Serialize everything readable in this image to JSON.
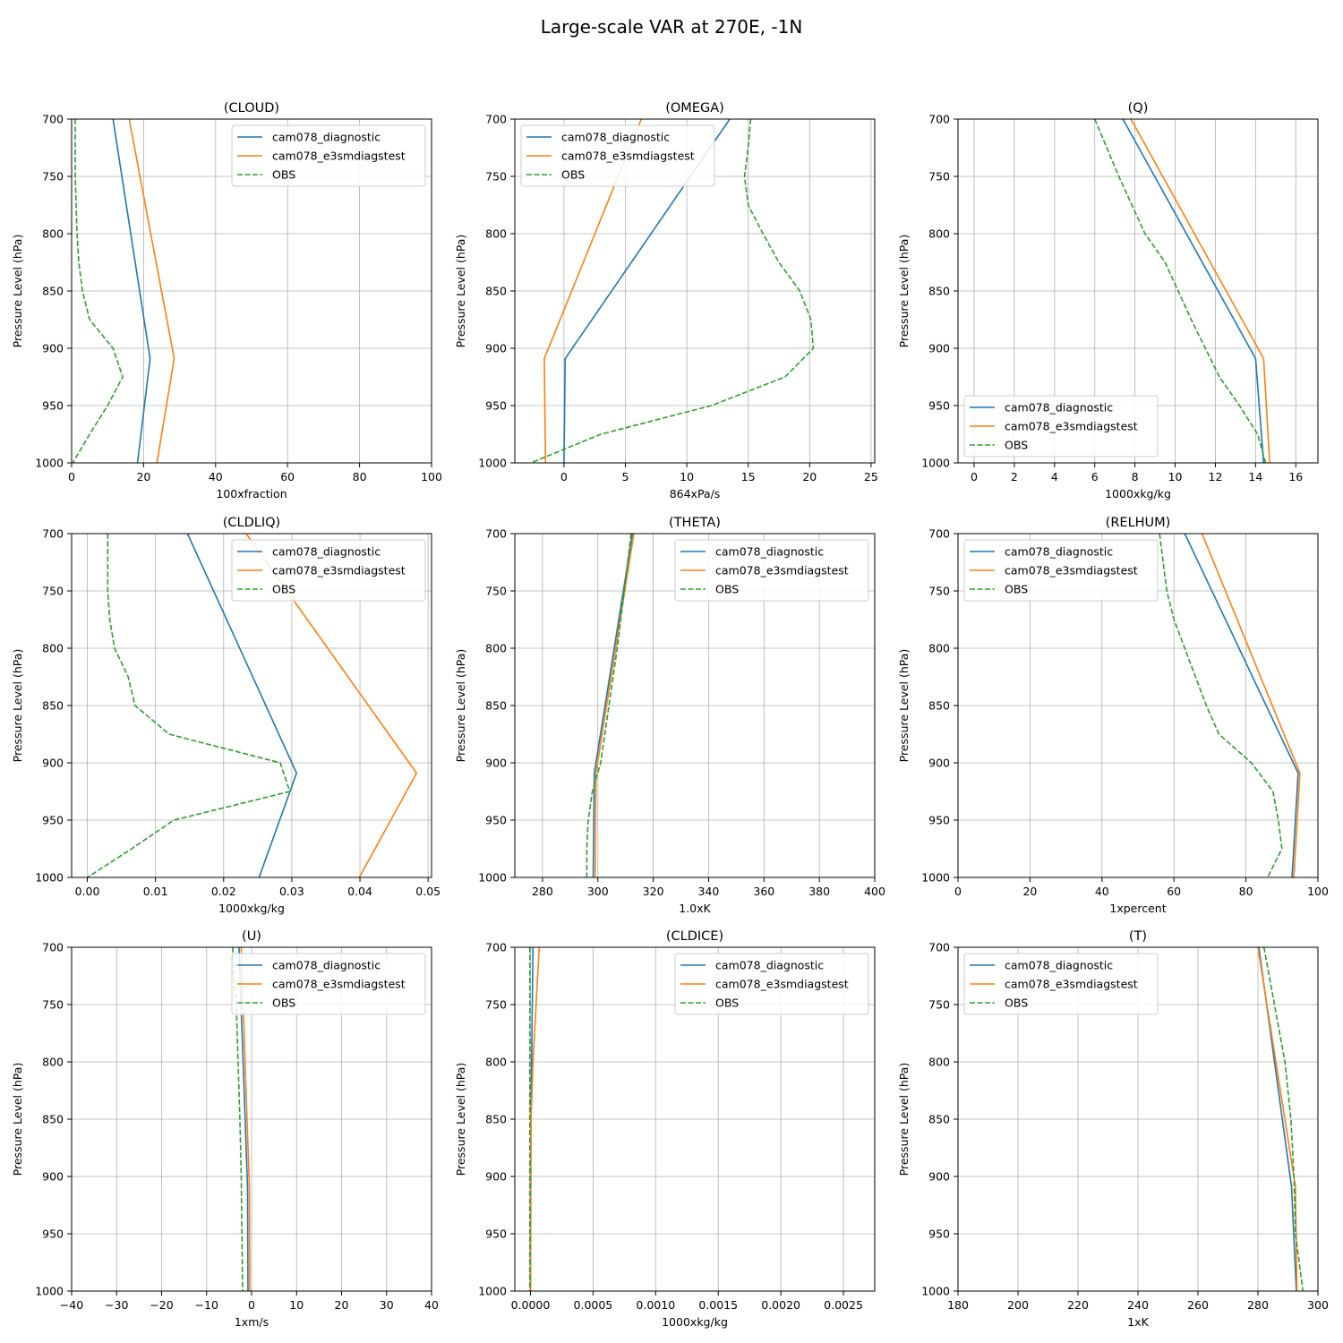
{
  "figure": {
    "title": "Large-scale VAR at 270E, -1N"
  },
  "colors": {
    "diag": "#1f77b4",
    "e3sm": "#ff7f0e",
    "obs": "#2ca02c"
  },
  "chart_data": [
    {
      "type": "line",
      "title": "(CLOUD)",
      "xlabel": "100xfraction",
      "ylabel": "Pressure Level (hPa)",
      "xlim": [
        0,
        100
      ],
      "ylim": [
        1000,
        700
      ],
      "xticks": [
        0,
        20,
        40,
        60,
        80,
        100
      ],
      "xtick_labels": [
        "0",
        "20",
        "40",
        "60",
        "80",
        "100"
      ],
      "yticks": [
        700,
        750,
        800,
        850,
        900,
        950,
        1000
      ],
      "ytick_labels": [
        "700",
        "750",
        "800",
        "850",
        "900",
        "950",
        "1000"
      ],
      "grid": true,
      "legend": "upper right",
      "series": [
        {
          "name": "cam078_diagnostic",
          "style": "solid",
          "x": [
            11.5,
            21.8,
            18.3
          ],
          "y": [
            700,
            909,
            1000
          ]
        },
        {
          "name": "cam078_e3smdiagstest",
          "style": "solid",
          "x": [
            16,
            28.5,
            23.7
          ],
          "y": [
            700,
            909,
            1000
          ]
        },
        {
          "name": "OBS",
          "style": "dashed",
          "x": [
            1,
            1,
            1.5,
            2,
            3,
            5,
            11.5,
            14.2,
            10,
            5,
            0.3
          ],
          "y": [
            700,
            750,
            800,
            825,
            850,
            875,
            900,
            925,
            950,
            975,
            1000
          ]
        }
      ]
    },
    {
      "type": "line",
      "title": "(OMEGA)",
      "xlabel": "864xPa/s",
      "ylabel": "Pressure Level (hPa)",
      "xlim": [
        -4,
        25.3
      ],
      "ylim": [
        1000,
        700
      ],
      "xticks": [
        0,
        5,
        10,
        15,
        20,
        25
      ],
      "xtick_labels": [
        "0",
        "5",
        "10",
        "15",
        "20",
        "25"
      ],
      "yticks": [
        700,
        750,
        800,
        850,
        900,
        950,
        1000
      ],
      "ytick_labels": [
        "700",
        "750",
        "800",
        "850",
        "900",
        "950",
        "1000"
      ],
      "grid": true,
      "legend": "upper left",
      "series": [
        {
          "name": "cam078_diagnostic",
          "style": "solid",
          "x": [
            13.5,
            0.1,
            0
          ],
          "y": [
            700,
            909,
            1000
          ]
        },
        {
          "name": "cam078_e3smdiagstest",
          "style": "solid",
          "x": [
            6.3,
            -1.6,
            -1.5
          ],
          "y": [
            700,
            909,
            1000
          ]
        },
        {
          "name": "OBS",
          "style": "dashed",
          "x": [
            15.2,
            15,
            14.7,
            15,
            16.2,
            17.5,
            19.2,
            20.1,
            20.3,
            18,
            12,
            3,
            -2.7
          ],
          "y": [
            700,
            725,
            750,
            775,
            800,
            825,
            850,
            875,
            900,
            925,
            950,
            975,
            1000
          ]
        }
      ]
    },
    {
      "type": "line",
      "title": "(Q)",
      "xlabel": "1000xkg/kg",
      "ylabel": "Pressure Level (hPa)",
      "xlim": [
        -0.8,
        17.1
      ],
      "ylim": [
        1000,
        700
      ],
      "xticks": [
        0,
        2,
        4,
        6,
        8,
        10,
        12,
        14,
        16
      ],
      "xtick_labels": [
        "0",
        "2",
        "4",
        "6",
        "8",
        "10",
        "12",
        "14",
        "16"
      ],
      "yticks": [
        700,
        750,
        800,
        850,
        900,
        950,
        1000
      ],
      "ytick_labels": [
        "700",
        "750",
        "800",
        "850",
        "900",
        "950",
        "1000"
      ],
      "grid": true,
      "legend": "lower left",
      "series": [
        {
          "name": "cam078_diagnostic",
          "style": "solid",
          "x": [
            7.4,
            14,
            14.4
          ],
          "y": [
            700,
            909,
            1000
          ]
        },
        {
          "name": "cam078_e3smdiagstest",
          "style": "solid",
          "x": [
            7.8,
            14.4,
            14.7
          ],
          "y": [
            700,
            909,
            1000
          ]
        },
        {
          "name": "OBS",
          "style": "dashed",
          "x": [
            6,
            7.2,
            8.5,
            9.5,
            10.8,
            12.2,
            13.2,
            14.1,
            14.5
          ],
          "y": [
            700,
            750,
            800,
            825,
            875,
            925,
            950,
            975,
            1000
          ]
        }
      ]
    },
    {
      "type": "line",
      "title": "(CLDLIQ)",
      "xlabel": "1000xkg/kg",
      "ylabel": "Pressure Level (hPa)",
      "xlim": [
        -0.0023,
        0.0505
      ],
      "ylim": [
        1000,
        700
      ],
      "xticks": [
        0,
        0.01,
        0.02,
        0.03,
        0.04,
        0.05
      ],
      "xtick_labels": [
        "0.00",
        "0.01",
        "0.02",
        "0.03",
        "0.04",
        "0.05"
      ],
      "yticks": [
        700,
        750,
        800,
        850,
        900,
        950,
        1000
      ],
      "ytick_labels": [
        "700",
        "750",
        "800",
        "850",
        "900",
        "950",
        "1000"
      ],
      "grid": true,
      "legend": "upper right",
      "series": [
        {
          "name": "cam078_diagnostic",
          "style": "solid",
          "x": [
            0.0147,
            0.0307,
            0.0252
          ],
          "y": [
            700,
            909,
            1000
          ]
        },
        {
          "name": "cam078_e3smdiagstest",
          "style": "solid",
          "x": [
            0.0233,
            0.0483,
            0.0399
          ],
          "y": [
            700,
            909,
            1000
          ]
        },
        {
          "name": "OBS",
          "style": "dashed",
          "x": [
            0.003,
            0.003,
            0.0033,
            0.004,
            0.006,
            0.007,
            0.012,
            0.0283,
            0.0297,
            0.0127,
            0.0065,
            0
          ],
          "y": [
            700,
            750,
            775,
            800,
            825,
            850,
            875,
            900,
            925,
            950,
            975,
            1000
          ]
        }
      ]
    },
    {
      "type": "line",
      "title": "(THETA)",
      "xlabel": "1.0xK",
      "ylabel": "Pressure Level (hPa)",
      "xlim": [
        270,
        400
      ],
      "ylim": [
        1000,
        700
      ],
      "xticks": [
        280,
        300,
        320,
        340,
        360,
        380,
        400
      ],
      "xtick_labels": [
        "280",
        "300",
        "320",
        "340",
        "360",
        "380",
        "400"
      ],
      "yticks": [
        700,
        750,
        800,
        850,
        900,
        950,
        1000
      ],
      "ytick_labels": [
        "700",
        "750",
        "800",
        "850",
        "900",
        "950",
        "1000"
      ],
      "grid": true,
      "legend": "upper right",
      "series": [
        {
          "name": "cam078_diagnostic",
          "style": "solid",
          "x": [
            312.5,
            298.7,
            298.3
          ],
          "y": [
            700,
            909,
            1000
          ]
        },
        {
          "name": "cam078_e3smdiagstest",
          "style": "solid",
          "x": [
            313,
            299.3,
            299
          ],
          "y": [
            700,
            909,
            1000
          ]
        },
        {
          "name": "OBS",
          "style": "dashed",
          "x": [
            312,
            309.5,
            307,
            304,
            301,
            298,
            296.5,
            296,
            296
          ],
          "y": [
            700,
            750,
            800,
            850,
            900,
            925,
            950,
            975,
            1000
          ]
        }
      ]
    },
    {
      "type": "line",
      "title": "(RELHUM)",
      "xlabel": "1xpercent",
      "ylabel": "Pressure Level (hPa)",
      "xlim": [
        0,
        100
      ],
      "ylim": [
        1000,
        700
      ],
      "xticks": [
        0,
        20,
        40,
        60,
        80,
        100
      ],
      "xtick_labels": [
        "0",
        "20",
        "40",
        "60",
        "80",
        "100"
      ],
      "yticks": [
        700,
        750,
        800,
        850,
        900,
        950,
        1000
      ],
      "ytick_labels": [
        "700",
        "750",
        "800",
        "850",
        "900",
        "950",
        "1000"
      ],
      "grid": true,
      "legend": "upper left",
      "series": [
        {
          "name": "cam078_diagnostic",
          "style": "solid",
          "x": [
            63,
            94.5,
            92.8
          ],
          "y": [
            700,
            909,
            1000
          ]
        },
        {
          "name": "cam078_e3smdiagstest",
          "style": "solid",
          "x": [
            67.8,
            95,
            93.3
          ],
          "y": [
            700,
            909,
            1000
          ]
        },
        {
          "name": "OBS",
          "style": "dashed",
          "x": [
            56,
            58,
            60,
            63,
            66,
            69,
            72.5,
            81.5,
            87.5,
            89,
            90,
            86
          ],
          "y": [
            700,
            750,
            775,
            800,
            825,
            850,
            875,
            900,
            925,
            950,
            975,
            1000
          ]
        }
      ]
    },
    {
      "type": "line",
      "title": "(U)",
      "xlabel": "1xm/s",
      "ylabel": "Pressure Level (hPa)",
      "xlim": [
        -40,
        40
      ],
      "ylim": [
        1000,
        700
      ],
      "xticks": [
        -40,
        -30,
        -20,
        -10,
        0,
        10,
        20,
        30,
        40
      ],
      "xtick_labels": [
        "−40",
        "−30",
        "−20",
        "−10",
        "0",
        "10",
        "20",
        "30",
        "40"
      ],
      "yticks": [
        700,
        750,
        800,
        850,
        900,
        950,
        1000
      ],
      "ytick_labels": [
        "700",
        "750",
        "800",
        "850",
        "900",
        "950",
        "1000"
      ],
      "grid": true,
      "legend": "upper right",
      "series": [
        {
          "name": "cam078_diagnostic",
          "style": "solid",
          "x": [
            -2.8,
            -0.9,
            -0.8
          ],
          "y": [
            700,
            909,
            1000
          ]
        },
        {
          "name": "cam078_e3smdiagstest",
          "style": "solid",
          "x": [
            -2.3,
            -0.5,
            -0.4
          ],
          "y": [
            700,
            909,
            1000
          ]
        },
        {
          "name": "OBS",
          "style": "dashed",
          "x": [
            -4.2,
            -4,
            -3.4,
            -3,
            -2.6,
            -2.3,
            -2
          ],
          "y": [
            700,
            725,
            750,
            800,
            850,
            900,
            1000
          ]
        }
      ]
    },
    {
      "type": "line",
      "title": "(CLDICE)",
      "xlabel": "1000xkg/kg",
      "ylabel": "Pressure Level (hPa)",
      "xlim": [
        -0.000125,
        0.00275
      ],
      "ylim": [
        1000,
        700
      ],
      "xticks": [
        0,
        0.0005,
        0.001,
        0.0015,
        0.002,
        0.0025
      ],
      "xtick_labels": [
        "0.0000",
        "0.0005",
        "0.0010",
        "0.0015",
        "0.0020",
        "0.0025"
      ],
      "yticks": [
        700,
        750,
        800,
        850,
        900,
        950,
        1000
      ],
      "ytick_labels": [
        "700",
        "750",
        "800",
        "850",
        "900",
        "950",
        "1000"
      ],
      "grid": true,
      "legend": "upper right",
      "series": [
        {
          "name": "cam078_diagnostic",
          "style": "solid",
          "x": [
            2e-05,
            4e-06,
            0
          ],
          "y": [
            700,
            850,
            1000
          ]
        },
        {
          "name": "cam078_e3smdiagstest",
          "style": "solid",
          "x": [
            7e-05,
            4.5e-05,
            2e-05,
            5e-06,
            0,
            0
          ],
          "y": [
            700,
            750,
            800,
            850,
            900,
            1000
          ]
        },
        {
          "name": "OBS",
          "style": "dashed",
          "x": [
            -5e-06,
            -5e-06,
            -5e-06
          ],
          "y": [
            700,
            850,
            1000
          ]
        }
      ]
    },
    {
      "type": "line",
      "title": "(T)",
      "xlabel": "1xK",
      "ylabel": "Pressure Level (hPa)",
      "xlim": [
        180,
        300
      ],
      "ylim": [
        1000,
        700
      ],
      "xticks": [
        180,
        200,
        220,
        240,
        260,
        280,
        300
      ],
      "xtick_labels": [
        "180",
        "200",
        "220",
        "240",
        "260",
        "280",
        "300"
      ],
      "yticks": [
        700,
        750,
        800,
        850,
        900,
        950,
        1000
      ],
      "ytick_labels": [
        "700",
        "750",
        "800",
        "850",
        "900",
        "950",
        "1000"
      ],
      "grid": true,
      "legend": "upper left",
      "series": [
        {
          "name": "cam078_diagnostic",
          "style": "solid",
          "x": [
            280.3,
            291.2,
            292.8
          ],
          "y": [
            700,
            909,
            1000
          ]
        },
        {
          "name": "cam078_e3smdiagstest",
          "style": "solid",
          "x": [
            280,
            292.5,
            293
          ],
          "y": [
            700,
            909,
            1000
          ]
        },
        {
          "name": "OBS",
          "style": "dashed",
          "x": [
            282,
            285.5,
            289,
            291,
            292,
            292.5,
            295
          ],
          "y": [
            700,
            750,
            800,
            850,
            900,
            950,
            1000
          ]
        }
      ]
    }
  ]
}
